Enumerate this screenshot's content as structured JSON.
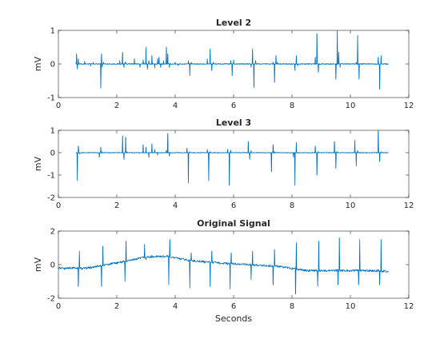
{
  "chart_data": [
    {
      "type": "line",
      "title": "Level 2",
      "xlabel": "",
      "ylabel": "mV",
      "xlim": [
        0,
        12
      ],
      "ylim": [
        -1,
        1
      ],
      "xticks": [
        0,
        2,
        4,
        6,
        8,
        10,
        12
      ],
      "yticks": [
        -1,
        0,
        1
      ],
      "series": [
        {
          "values_hint": "wavelet detail coefficients, mostly near 0 with sparse spikes",
          "x": [
            0.6,
            0.62,
            0.65,
            0.68,
            0.7,
            0.9,
            1.1,
            1.2,
            1.45,
            1.48,
            1.5,
            1.55,
            2.1,
            2.2,
            2.25,
            2.28,
            2.3,
            2.6,
            2.8,
            2.9,
            3.0,
            3.05,
            3.1,
            3.2,
            3.3,
            3.4,
            3.45,
            3.5,
            3.6,
            3.7,
            3.75,
            3.8,
            4.0,
            4.1,
            4.45,
            4.5,
            4.55,
            5.1,
            5.2,
            5.25,
            5.3,
            5.9,
            5.95,
            6.0,
            6.6,
            6.65,
            6.7,
            6.75,
            7.35,
            7.4,
            7.45,
            7.5,
            8.1,
            8.15,
            8.2,
            8.8,
            8.85,
            8.9,
            9.5,
            9.55,
            9.6,
            9.65,
            10.2,
            10.25,
            10.3,
            10.95,
            11.0,
            11.05
          ],
          "y": [
            0.05,
            0.3,
            -0.15,
            0.15,
            0,
            0.08,
            -0.06,
            0.05,
            -0.72,
            0.3,
            -0.1,
            0.05,
            0.1,
            0.35,
            -0.1,
            0.05,
            0.05,
            0.15,
            -0.1,
            0.12,
            0.5,
            -0.15,
            0.1,
            0.25,
            -0.12,
            0.15,
            0.2,
            -0.1,
            0.1,
            0.5,
            0.3,
            -0.1,
            0.05,
            -0.05,
            0.1,
            -0.35,
            0.05,
            0.15,
            0.45,
            -0.2,
            0.05,
            0.1,
            -0.35,
            0.12,
            -0.1,
            0.45,
            -0.7,
            0.1,
            0.05,
            -0.55,
            0.25,
            0.05,
            -0.2,
            0.25,
            -0.05,
            0.2,
            0.9,
            -0.25,
            -0.45,
            1.0,
            0.35,
            -0.1,
            0.05,
            0.85,
            -0.45,
            0.2,
            -0.75,
            0.25
          ]
        }
      ]
    },
    {
      "type": "line",
      "title": "Level 3",
      "xlabel": "",
      "ylabel": "mV",
      "xlim": [
        0,
        12
      ],
      "ylim": [
        -2,
        1
      ],
      "xticks": [
        0,
        2,
        4,
        6,
        8,
        10,
        12
      ],
      "yticks": [
        -2,
        -1,
        0,
        1
      ],
      "series": [
        {
          "x": [
            0.65,
            0.68,
            0.7,
            0.72,
            1.4,
            1.45,
            1.5,
            2.2,
            2.25,
            2.3,
            2.35,
            2.9,
            3.0,
            3.1,
            3.2,
            3.3,
            3.4,
            3.7,
            3.75,
            3.8,
            4.4,
            4.45,
            4.5,
            5.1,
            5.15,
            5.2,
            5.8,
            5.85,
            5.9,
            6.5,
            6.55,
            6.6,
            7.3,
            7.35,
            7.4,
            8.05,
            8.1,
            8.15,
            8.8,
            8.85,
            8.9,
            9.45,
            9.5,
            9.55,
            10.15,
            10.2,
            10.25,
            10.95,
            11.0,
            11.05
          ],
          "y": [
            -1.25,
            0.3,
            0.1,
            -0.05,
            -0.2,
            0.25,
            0.05,
            0.75,
            -0.3,
            0.7,
            0.05,
            0.35,
            0.25,
            -0.2,
            0.4,
            0.15,
            -0.1,
            0.1,
            0.85,
            -0.15,
            0.2,
            -1.35,
            0.05,
            0.15,
            -1.25,
            0.05,
            0.15,
            -1.45,
            0.1,
            0.5,
            -0.3,
            0.1,
            -0.85,
            0.35,
            0.05,
            -0.2,
            -1.45,
            0.45,
            0.3,
            -1.0,
            0.05,
            0.5,
            -0.7,
            0.05,
            0.55,
            -0.6,
            0.1,
            1.0,
            -0.4,
            0.05
          ]
        }
      ]
    },
    {
      "type": "line",
      "title": "Original Signal",
      "xlabel": "Seconds",
      "ylabel": "mV",
      "xlim": [
        0,
        12
      ],
      "ylim": [
        -2,
        2
      ],
      "xticks": [
        0,
        2,
        4,
        6,
        8,
        10,
        12
      ],
      "yticks": [
        -2,
        0,
        2
      ],
      "series": [
        {
          "x": [
            0.0,
            0.2,
            0.4,
            0.6,
            0.68,
            0.72,
            0.8,
            1.0,
            1.2,
            1.4,
            1.48,
            1.52,
            1.6,
            1.8,
            2.0,
            2.2,
            2.28,
            2.32,
            2.5,
            2.8,
            2.95,
            3.0,
            3.05,
            3.2,
            3.4,
            3.7,
            3.78,
            3.82,
            4.0,
            4.2,
            4.45,
            4.5,
            4.55,
            4.8,
            5.0,
            5.15,
            5.2,
            5.25,
            5.5,
            5.8,
            5.88,
            5.92,
            6.2,
            6.5,
            6.6,
            6.65,
            6.8,
            7.1,
            7.35,
            7.4,
            7.45,
            7.7,
            8.0,
            8.12,
            8.15,
            8.2,
            8.5,
            8.8,
            8.88,
            8.92,
            9.2,
            9.5,
            9.58,
            9.62,
            9.9,
            10.2,
            10.28,
            10.32,
            10.6,
            10.95,
            11.0,
            11.05,
            11.3
          ],
          "y": [
            -0.2,
            -0.3,
            -0.25,
            -0.2,
            -1.3,
            0.8,
            -0.3,
            -0.2,
            -0.1,
            -0.1,
            -1.3,
            1.1,
            0.0,
            0.1,
            0.15,
            0.2,
            -1.0,
            1.4,
            0.3,
            0.4,
            1.2,
            0.3,
            0.5,
            0.55,
            0.5,
            0.5,
            -1.2,
            1.5,
            0.4,
            0.3,
            0.2,
            -1.4,
            0.7,
            0.2,
            0.1,
            0.2,
            -1.3,
            0.8,
            0.1,
            0.0,
            -1.45,
            0.7,
            0.0,
            0.0,
            -0.9,
            0.8,
            0.0,
            -0.1,
            -1.2,
            0.9,
            -0.1,
            -0.2,
            -0.3,
            -1.75,
            1.3,
            -0.3,
            -0.4,
            -0.3,
            -1.3,
            1.4,
            -0.4,
            -0.3,
            -1.2,
            1.6,
            -0.4,
            -0.3,
            -1.2,
            1.5,
            -0.4,
            -0.3,
            -1.2,
            1.5,
            -0.4
          ]
        }
      ]
    }
  ],
  "colors": {
    "line": "#0072bd",
    "axis": "#262626"
  }
}
